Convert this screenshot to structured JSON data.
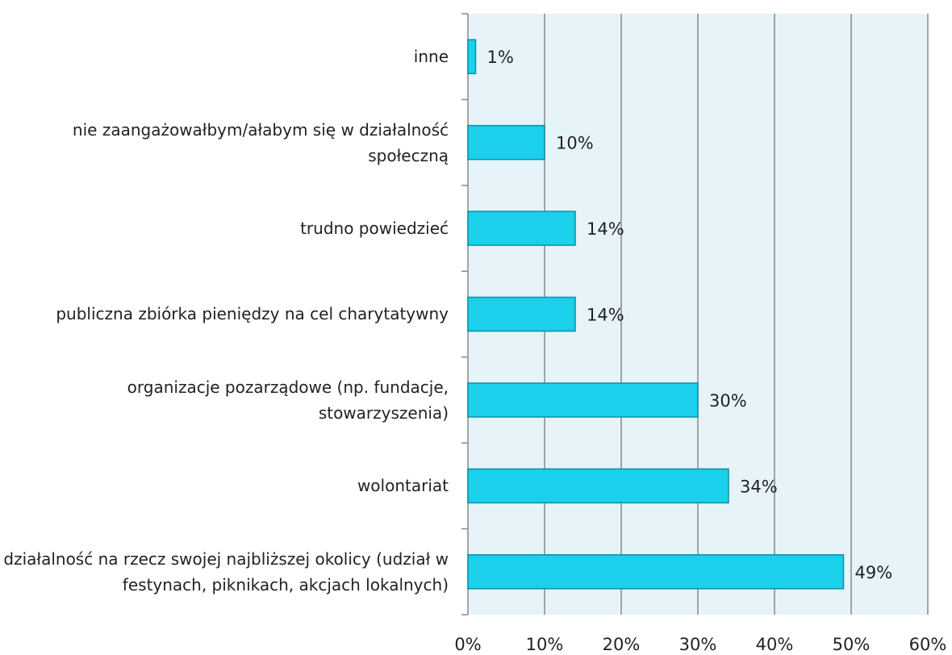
{
  "chart_data": {
    "type": "bar",
    "orientation": "horizontal",
    "categories": [
      "inne",
      "nie zaangażowałbym/ałabym się w działalność społeczną",
      "trudno powiedzieć",
      "publiczna zbiórka pieniędzy na cel charytatywny",
      "organizacje pozarządowe (np. fundacje, stowarzyszenia)",
      "wolontariat",
      "działalność na rzecz swojej najbliższej okolicy (udział w festynach, piknikach, akcjach lokalnych)"
    ],
    "values": [
      1,
      10,
      14,
      14,
      30,
      34,
      49
    ],
    "value_labels": [
      "1%",
      "10%",
      "14%",
      "14%",
      "30%",
      "34%",
      "49%"
    ],
    "color": "#1ad0ea",
    "xlim": [
      0,
      60
    ],
    "xticks": [
      {
        "value": 0,
        "label": "0%"
      },
      {
        "value": 10,
        "label": "10%"
      },
      {
        "value": 20,
        "label": "20%"
      },
      {
        "value": 30,
        "label": "30%"
      },
      {
        "value": 40,
        "label": "40%"
      },
      {
        "value": 50,
        "label": "50%"
      },
      {
        "value": 60,
        "label": "60%"
      }
    ],
    "grid": true
  }
}
